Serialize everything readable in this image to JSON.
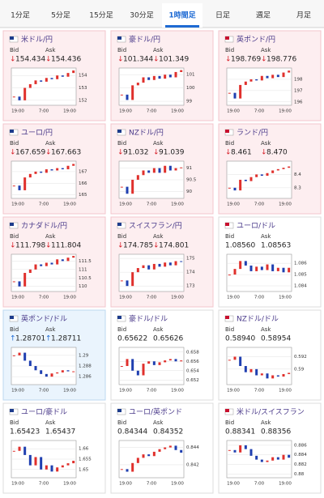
{
  "tabs": {
    "items": [
      "1分足",
      "5分足",
      "15分足",
      "30分足",
      "1時間足",
      "日足",
      "週足",
      "月足"
    ],
    "active": 4
  },
  "labels": {
    "bid": "Bid",
    "ask": "Ask"
  },
  "cards": [
    {
      "name": "米ドル/円",
      "arrow": "↓",
      "bid": "154.434",
      "ask": "154.436",
      "ylim": [
        151.6,
        154.6
      ],
      "yticks": [
        154,
        153,
        152
      ],
      "xlabels": [
        "19:00",
        "7:00",
        "19:00"
      ],
      "closes": [
        152.3,
        152.0,
        153.0,
        153.3,
        153.6,
        153.5,
        153.8,
        153.7,
        154.0,
        153.9,
        154.2,
        154.4
      ]
    },
    {
      "name": "豪ドル/円",
      "arrow": "↓",
      "bid": "101.344",
      "ask": "101.349",
      "ylim": [
        98.7,
        101.5
      ],
      "yticks": [
        101,
        100,
        99
      ],
      "xlabels": [
        "19:00",
        "7:00",
        "19:00"
      ],
      "closes": [
        99.5,
        99.1,
        100.2,
        100.4,
        100.8,
        100.6,
        100.9,
        100.7,
        101.0,
        100.8,
        101.2,
        101.34
      ]
    },
    {
      "name": "英ポンド/円",
      "arrow": "↓",
      "bid": "198.769",
      "ask": "198.776",
      "ylim": [
        195.7,
        199.0
      ],
      "yticks": [
        198,
        197,
        196
      ],
      "xlabels": [
        "19:00",
        "7:00",
        "19:00"
      ],
      "closes": [
        196.8,
        196.3,
        197.5,
        197.8,
        198.0,
        197.9,
        198.3,
        198.1,
        198.4,
        198.2,
        198.6,
        198.77
      ]
    },
    {
      "name": "ユーロ/円",
      "arrow": "↓",
      "bid": "167.659",
      "ask": "167.663",
      "ylim": [
        164.7,
        167.9
      ],
      "yticks": [
        167,
        166,
        165
      ],
      "xlabels": [
        "19:00",
        "7:00",
        "19:00"
      ],
      "closes": [
        165.8,
        165.4,
        166.5,
        166.8,
        167.0,
        166.9,
        167.2,
        167.1,
        167.3,
        167.2,
        167.5,
        167.66
      ]
    },
    {
      "name": "NZドル/円",
      "arrow": "↓",
      "bid": "91.032",
      "ask": "91.039",
      "ylim": [
        89.7,
        91.3
      ],
      "yticks": [
        91,
        90.5,
        90
      ],
      "xlabels": [
        "19:00",
        "7:00",
        "19:00"
      ],
      "closes": [
        90.2,
        89.9,
        90.5,
        90.7,
        90.9,
        90.8,
        91.0,
        90.8,
        91.1,
        90.9,
        91.0,
        91.03
      ]
    },
    {
      "name": "ランド/円",
      "arrow": "↓",
      "bid": "8.461",
      "ask": "8.470",
      "ylim": [
        8.22,
        8.5
      ],
      "yticks": [
        8.4,
        8.3
      ],
      "xlabels": [
        "19:00",
        "7:00",
        "19:00"
      ],
      "closes": [
        8.3,
        8.28,
        8.36,
        8.35,
        8.38,
        8.4,
        8.39,
        8.41,
        8.43,
        8.44,
        8.45,
        8.46
      ]
    },
    {
      "name": "カナダドル/円",
      "arrow": "↓",
      "bid": "111.798",
      "ask": "111.804",
      "ylim": [
        109.7,
        111.9
      ],
      "yticks": [
        111.5,
        111,
        110.5,
        110
      ],
      "xlabels": [
        "19:00",
        "7:00",
        "19:00"
      ],
      "closes": [
        110.3,
        110.0,
        110.8,
        111.0,
        111.3,
        111.2,
        111.4,
        111.3,
        111.6,
        111.5,
        111.7,
        111.8
      ]
    },
    {
      "name": "スイスフラン/円",
      "arrow": "↓",
      "bid": "174.785",
      "ask": "174.801",
      "ylim": [
        172.6,
        175.3
      ],
      "yticks": [
        175,
        174,
        173
      ],
      "xlabels": [
        "19:00",
        "7:00",
        "19:00"
      ],
      "closes": [
        173.4,
        173.0,
        174.0,
        174.3,
        174.5,
        174.2,
        174.6,
        174.4,
        174.7,
        174.5,
        174.8,
        174.79
      ]
    },
    {
      "name": "ユーロ/ドル",
      "bid": "1.08560",
      "ask": "1.08563",
      "ylim": [
        1.0835,
        1.0868
      ],
      "yticks": [
        1.086,
        1.085,
        1.084
      ],
      "xlabels": [
        "19:00",
        "7:00",
        "19:00"
      ],
      "closes": [
        1.085,
        1.0855,
        1.0862,
        1.0858,
        1.0853,
        1.0857,
        1.0854,
        1.0859,
        1.0853,
        1.0856,
        1.0852,
        1.0856
      ]
    },
    {
      "name": "英ポンド/ドル",
      "arrow": "↑",
      "bid": "1.28701",
      "ask": "1.28711",
      "ylim": [
        1.2845,
        1.2915
      ],
      "yticks": [
        1.29,
        1.288,
        1.286
      ],
      "xlabels": [
        "19:00",
        "7:00",
        "19:00"
      ],
      "closes": [
        1.29,
        1.2905,
        1.289,
        1.288,
        1.2872,
        1.2865,
        1.286,
        1.2866,
        1.2868,
        1.2872,
        1.287,
        1.287
      ]
    },
    {
      "name": "豪ドル/ドル",
      "bid": "0.65622",
      "ask": "0.65626",
      "ylim": [
        0.651,
        0.659
      ],
      "yticks": [
        0.658,
        0.656,
        0.654,
        0.652
      ],
      "xlabels": [
        "19:00",
        "7:00",
        "19:00"
      ],
      "closes": [
        0.655,
        0.6565,
        0.654,
        0.653,
        0.6555,
        0.656,
        0.6552,
        0.6558,
        0.6562,
        0.6565,
        0.656,
        0.6562
      ]
    },
    {
      "name": "NZドル/ドル",
      "bid": "0.58940",
      "ask": "0.58954",
      "ylim": [
        0.5875,
        0.5935
      ],
      "yticks": [
        0.592,
        0.59
      ],
      "xlabels": [
        "19:00",
        "7:00",
        "19:00"
      ],
      "closes": [
        0.5915,
        0.592,
        0.5905,
        0.5895,
        0.59,
        0.589,
        0.5893,
        0.5885,
        0.589,
        0.5888,
        0.5892,
        0.5894
      ]
    },
    {
      "name": "ユーロ/豪ドル",
      "bid": "1.65423",
      "ask": "1.65437",
      "ylim": [
        1.646,
        1.664
      ],
      "yticks": [
        1.66,
        1.655,
        1.65
      ],
      "xlabels": [
        "19:00",
        "7:00",
        "19:00"
      ],
      "closes": [
        1.659,
        1.661,
        1.657,
        1.652,
        1.656,
        1.65,
        1.652,
        1.649,
        1.651,
        1.652,
        1.653,
        1.6542
      ]
    },
    {
      "name": "ユーロ/英ポンド",
      "bid": "0.84344",
      "ask": "0.84352",
      "ylim": [
        0.8405,
        0.8448
      ],
      "yticks": [
        0.844,
        0.842
      ],
      "xlabels": [
        "19:00",
        "7:00",
        "19:00"
      ],
      "closes": [
        0.8415,
        0.8412,
        0.8422,
        0.8428,
        0.8432,
        0.843,
        0.8435,
        0.8438,
        0.844,
        0.8442,
        0.8437,
        0.8434
      ]
    },
    {
      "name": "米ドル/スイスフラン",
      "bid": "0.88341",
      "ask": "0.88356",
      "ylim": [
        0.8792,
        0.887
      ],
      "yticks": [
        0.886,
        0.884,
        0.882,
        0.88
      ],
      "xlabels": [
        "19:00",
        "7:00",
        "19:00"
      ],
      "closes": [
        0.885,
        0.8845,
        0.886,
        0.8852,
        0.8838,
        0.883,
        0.8825,
        0.8828,
        0.8835,
        0.883,
        0.884,
        0.8834
      ]
    }
  ]
}
